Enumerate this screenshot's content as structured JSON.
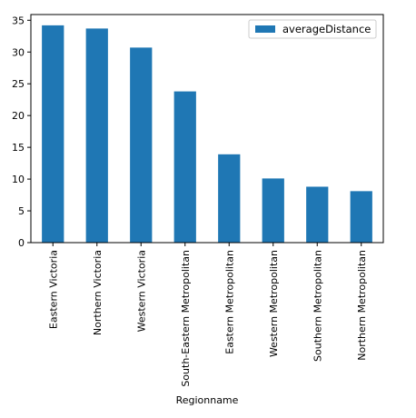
{
  "chart_data": {
    "type": "bar",
    "categories": [
      "Eastern Victoria",
      "Northern Victoria",
      "Western Victoria",
      "South-Eastern Metropolitan",
      "Eastern Metropolitan",
      "Western Metropolitan",
      "Southern Metropolitan",
      "Northern Metropolitan"
    ],
    "series": [
      {
        "name": "averageDistance",
        "values": [
          34.2,
          33.7,
          30.7,
          23.8,
          13.9,
          10.1,
          8.8,
          8.1
        ],
        "color": "#1f77b4"
      }
    ],
    "xlabel": "Regionname",
    "ylabel": "",
    "ylim": [
      0,
      35.9
    ],
    "yticks": [
      0,
      5,
      10,
      15,
      20,
      25,
      30,
      35
    ],
    "grid": false,
    "legend": "top-right"
  }
}
